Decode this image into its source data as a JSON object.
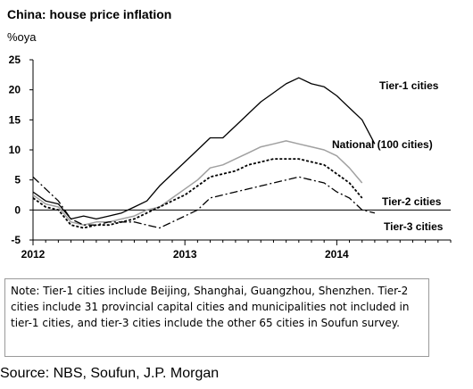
{
  "note": "Note: Tier-1 cities include Beijing, Shanghai, Guangzhou, Shenzhen. Tier-2 cities include 31 provincial capital cities and municipalities not included in tier-1 cities, and tier-3 cities include the other 65 cities in Soufun survey.",
  "source": "Source: NBS, Soufun, J.P. Morgan",
  "chart_data": {
    "type": "line",
    "title": "China: house price inflation",
    "ylabel": "%oya",
    "ylim": [
      -5,
      25
    ],
    "yticks": [
      -5,
      0,
      5,
      10,
      15,
      20,
      25
    ],
    "yticklabels": [
      "-5",
      "0",
      "5",
      "10",
      "15",
      "20",
      "25"
    ],
    "xlim": [
      "2012-01",
      "2014-10"
    ],
    "xticks": [
      "2012-01",
      "2013-01",
      "2014-01"
    ],
    "xticklabels": [
      "2012",
      "2013",
      "2014"
    ],
    "grid": false,
    "zero_line": true,
    "x": [
      "2012-01",
      "2012-02",
      "2012-03",
      "2012-04",
      "2012-05",
      "2012-06",
      "2012-07",
      "2012-08",
      "2012-09",
      "2012-10",
      "2012-11",
      "2012-12",
      "2013-01",
      "2013-02",
      "2013-03",
      "2013-04",
      "2013-05",
      "2013-06",
      "2013-07",
      "2013-08",
      "2013-09",
      "2013-10",
      "2013-11",
      "2013-12",
      "2014-01",
      "2014-02",
      "2014-03",
      "2014-04",
      "2014-05",
      "2014-06",
      "2014-07"
    ],
    "series": [
      {
        "name": "Tier-1 cities",
        "color": "#000000",
        "dash": "",
        "width": 1.3,
        "values": [
          3.0,
          1.5,
          1.0,
          -1.5,
          -1.0,
          -1.5,
          -1.0,
          -0.5,
          0.5,
          1.5,
          4.0,
          6.0,
          8.0,
          10.0,
          12.0,
          12.0,
          14.0,
          16.0,
          18.0,
          19.5,
          21.0,
          22.0,
          21.0,
          20.5,
          19.0,
          17.0,
          15.0,
          11.0,
          null,
          null,
          null
        ]
      },
      {
        "name": "National (100 cities)",
        "color": "#a0a0a0",
        "dash": "",
        "width": 1.5,
        "values": [
          2.5,
          1.0,
          0.5,
          -2.0,
          -2.5,
          -2.0,
          -2.0,
          -1.5,
          -1.0,
          0.0,
          0.5,
          2.0,
          3.5,
          5.0,
          7.0,
          7.5,
          8.5,
          9.5,
          10.5,
          11.0,
          11.5,
          11.0,
          10.5,
          10.0,
          9.0,
          7.0,
          4.5,
          null,
          null,
          null,
          null
        ]
      },
      {
        "name": "Tier-2 cities",
        "color": "#000000",
        "dash": "3,2",
        "width": 1.8,
        "values": [
          2.0,
          0.5,
          0.0,
          -2.5,
          -3.0,
          -2.5,
          -2.5,
          -2.0,
          -1.5,
          -0.5,
          0.5,
          1.5,
          2.5,
          4.0,
          5.5,
          6.0,
          6.5,
          7.5,
          8.0,
          8.5,
          8.5,
          8.5,
          8.0,
          7.5,
          6.0,
          4.5,
          2.0,
          null,
          null,
          null,
          null
        ]
      },
      {
        "name": "Tier-3 cities",
        "color": "#000000",
        "dash": "9,3,2,3",
        "width": 1.3,
        "values": [
          5.5,
          3.5,
          1.5,
          -1.5,
          -2.5,
          -2.5,
          -2.0,
          -2.0,
          -2.0,
          -2.5,
          -3.0,
          -2.0,
          -1.0,
          0.0,
          2.0,
          2.5,
          3.0,
          3.5,
          4.0,
          4.5,
          5.0,
          5.5,
          5.0,
          4.5,
          3.0,
          2.0,
          0.0,
          -0.5,
          null,
          null,
          null
        ]
      }
    ],
    "series_labels": [
      "Tier-1 cities",
      "National (100 cities)",
      "Tier-2 cities",
      "Tier-3 cities"
    ]
  }
}
